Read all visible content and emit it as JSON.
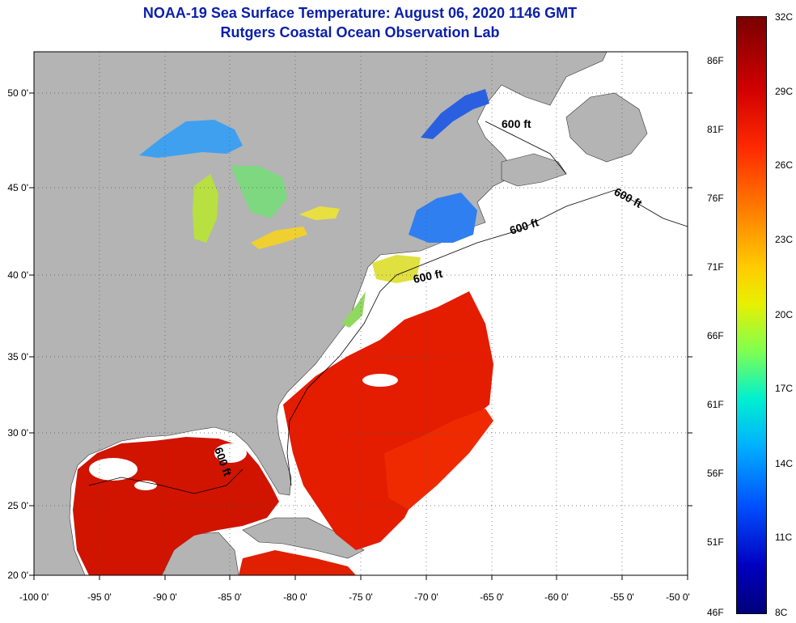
{
  "header": {
    "title": "NOAA-19 Sea Surface Temperature:  August 06, 2020 1146 GMT",
    "subtitle": "Rutgers Coastal Ocean Observation Lab"
  },
  "map": {
    "lat_labels": [
      "50 0'",
      "45 0'",
      "40 0'",
      "35 0'",
      "30 0'",
      "25 0'",
      "20 0'"
    ],
    "lon_labels": [
      "-100 0'",
      "-95 0'",
      "-90 0'",
      "-85 0'",
      "-80 0'",
      "-75 0'",
      "-70 0'",
      "-65 0'",
      "-60 0'",
      "-55 0'",
      "-50 0'"
    ],
    "contour_labels": [
      "600 ft",
      "600 ft",
      "600 ft",
      "600 ft",
      "600 ft"
    ]
  },
  "colorbar": {
    "fahrenheit": [
      "86F",
      "81F",
      "76F",
      "71F",
      "66F",
      "61F",
      "56F",
      "51F",
      "46F"
    ],
    "celsius": [
      "32C",
      "29C",
      "26C",
      "23C",
      "20C",
      "17C",
      "14C",
      "11C",
      "8C"
    ]
  },
  "colors": {
    "title": "#0a1fa8",
    "land": "#b4b4b4",
    "warm": "#e01a00",
    "no_data": "#ffffff"
  }
}
